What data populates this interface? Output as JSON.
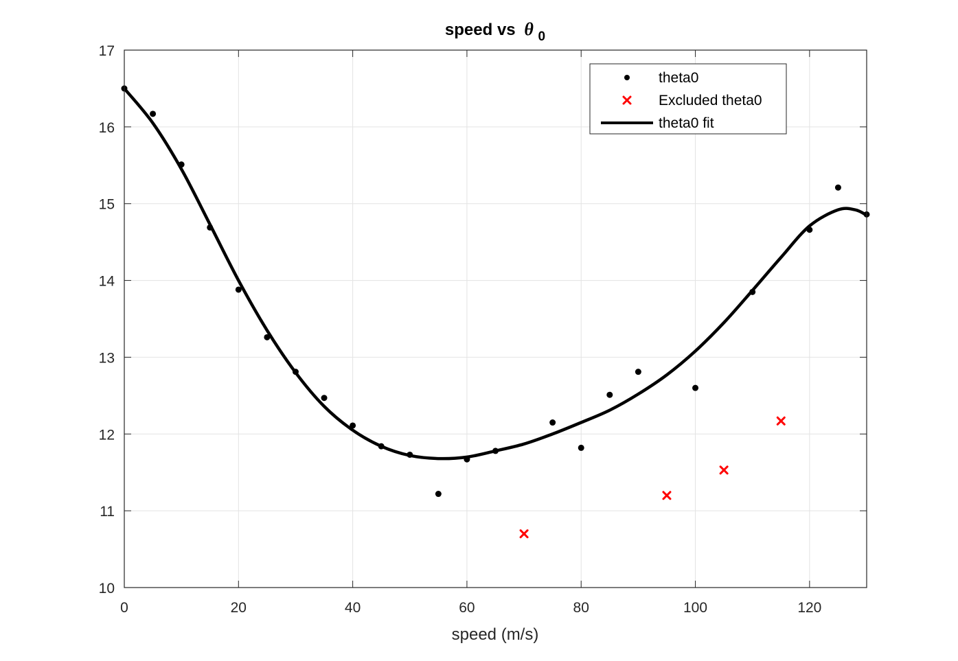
{
  "chart_data": {
    "type": "scatter",
    "title": "speed vs",
    "title_symbol": "θ",
    "title_subscript": "0",
    "xlabel": "speed (m/s)",
    "ylabel": "",
    "xlim": [
      0,
      130
    ],
    "ylim": [
      10,
      17
    ],
    "x_ticks": [
      "0",
      "20",
      "40",
      "60",
      "80",
      "100",
      "120"
    ],
    "y_ticks": [
      "10",
      "11",
      "12",
      "13",
      "14",
      "15",
      "16",
      "17"
    ],
    "grid": true,
    "legend_position": "top-right",
    "series": [
      {
        "name": "theta0",
        "kind": "points",
        "color": "#000000",
        "points": [
          [
            0,
            16.5
          ],
          [
            5,
            16.17
          ],
          [
            10,
            15.51
          ],
          [
            15,
            14.69
          ],
          [
            20,
            13.88
          ],
          [
            25,
            13.26
          ],
          [
            30,
            12.81
          ],
          [
            35,
            12.47
          ],
          [
            40,
            12.11
          ],
          [
            45,
            11.84
          ],
          [
            50,
            11.73
          ],
          [
            55,
            11.22
          ],
          [
            60,
            11.67
          ],
          [
            65,
            11.78
          ],
          [
            75,
            12.15
          ],
          [
            80,
            11.82
          ],
          [
            85,
            12.51
          ],
          [
            90,
            12.81
          ],
          [
            100,
            12.6
          ],
          [
            110,
            13.85
          ],
          [
            120,
            14.66
          ],
          [
            125,
            15.21
          ],
          [
            130,
            14.86
          ]
        ]
      },
      {
        "name": "Excluded theta0",
        "kind": "excluded",
        "color": "#ff0000",
        "points": [
          [
            70,
            10.7
          ],
          [
            95,
            11.2
          ],
          [
            105,
            11.53
          ],
          [
            115,
            12.17
          ]
        ]
      },
      {
        "name": "theta0 fit",
        "kind": "fit",
        "color": "#000000",
        "points": [
          [
            0,
            16.5
          ],
          [
            5,
            16.05
          ],
          [
            10,
            15.45
          ],
          [
            15,
            14.73
          ],
          [
            20,
            14.0
          ],
          [
            25,
            13.35
          ],
          [
            30,
            12.8
          ],
          [
            35,
            12.36
          ],
          [
            40,
            12.05
          ],
          [
            45,
            11.84
          ],
          [
            50,
            11.72
          ],
          [
            55,
            11.68
          ],
          [
            60,
            11.7
          ],
          [
            65,
            11.78
          ],
          [
            70,
            11.87
          ],
          [
            75,
            12.0
          ],
          [
            80,
            12.15
          ],
          [
            85,
            12.31
          ],
          [
            90,
            12.52
          ],
          [
            95,
            12.77
          ],
          [
            100,
            13.08
          ],
          [
            105,
            13.45
          ],
          [
            110,
            13.87
          ],
          [
            115,
            14.3
          ],
          [
            120,
            14.71
          ],
          [
            125,
            14.92
          ],
          [
            128,
            14.92
          ],
          [
            130,
            14.85
          ]
        ]
      }
    ]
  }
}
